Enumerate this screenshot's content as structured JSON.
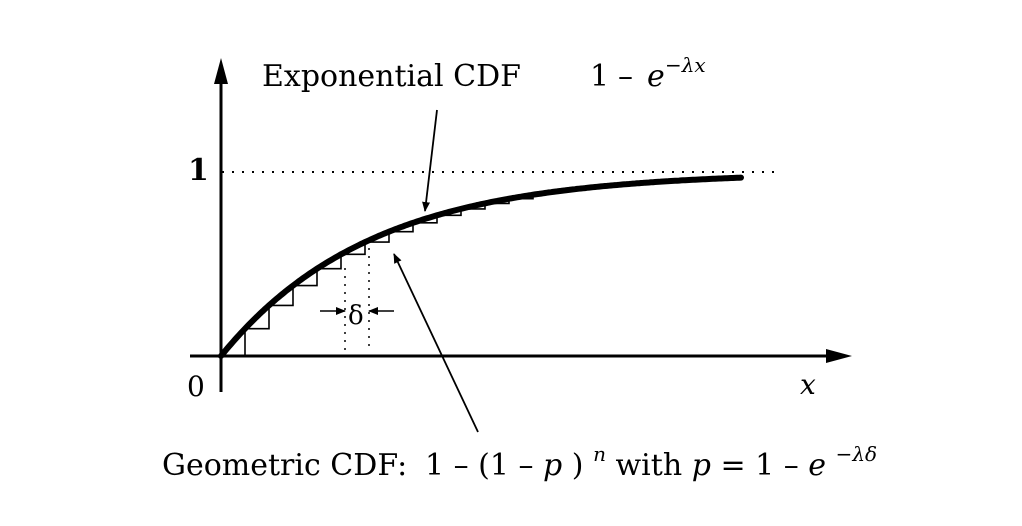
{
  "labels": {
    "exp_text": "Exponential CDF",
    "exp_one": "1",
    "exp_minus": "–",
    "exp_e": "e",
    "exp_power": "−λx",
    "y_tick_one": "1",
    "origin": "0",
    "x_axis": "x",
    "delta": "δ",
    "geo_text": "Geometric CDF:",
    "geo_expr": "1 – (1 – ",
    "geo_p": "p",
    "geo_close": ")",
    "geo_n": "n",
    "geo_with": " with ",
    "geo_p2": "p",
    "geo_eq": " = 1 – ",
    "geo_e": "e",
    "geo_power": "−λδ"
  }
}
